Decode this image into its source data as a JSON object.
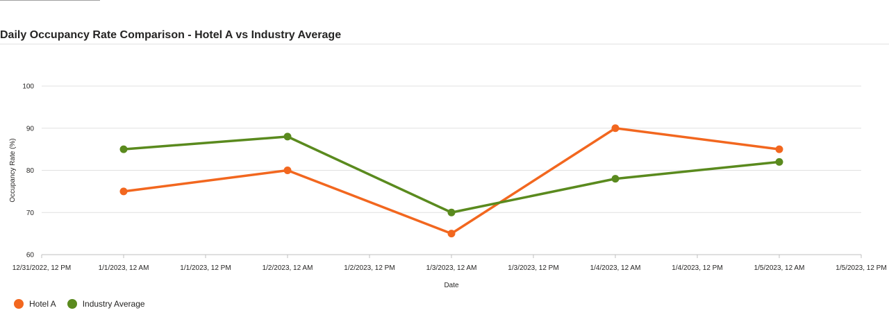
{
  "chart_data": {
    "type": "line",
    "title": "Daily Occupancy Rate Comparison - Hotel A vs Industry Average",
    "xlabel": "Date",
    "ylabel": "Occupancy Rate (%)",
    "x_ticks": [
      "12/31/2022, 12 PM",
      "1/1/2023, 12 AM",
      "1/1/2023, 12 PM",
      "1/2/2023, 12 AM",
      "1/2/2023, 12 PM",
      "1/3/2023, 12 AM",
      "1/3/2023, 12 PM",
      "1/4/2023, 12 AM",
      "1/4/2023, 12 PM",
      "1/5/2023, 12 AM",
      "1/5/2023, 12 PM"
    ],
    "x": [
      "2023-01-01",
      "2023-01-02",
      "2023-01-03",
      "2023-01-04",
      "2023-01-05"
    ],
    "xlim": [
      "2022-12-31T12:00",
      "2023-01-05T12:00"
    ],
    "ylim": [
      60,
      100
    ],
    "y_ticks": [
      60,
      70,
      80,
      90,
      100
    ],
    "grid": true,
    "legend": "bottom-left",
    "series": [
      {
        "name": "Hotel A",
        "color": "#f2671f",
        "values": [
          75,
          80,
          65,
          90,
          85
        ]
      },
      {
        "name": "Industry Average",
        "color": "#5a8a1e",
        "values": [
          85,
          88,
          70,
          78,
          82
        ]
      }
    ]
  }
}
